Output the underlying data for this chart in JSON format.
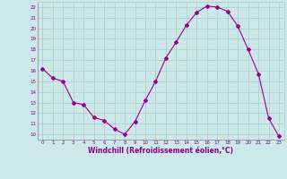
{
  "x": [
    0,
    1,
    2,
    3,
    4,
    5,
    6,
    7,
    8,
    9,
    10,
    11,
    12,
    13,
    14,
    15,
    16,
    17,
    18,
    19,
    20,
    21,
    22,
    23
  ],
  "y": [
    16.2,
    15.3,
    15.0,
    13.0,
    12.8,
    11.6,
    11.3,
    10.5,
    10.0,
    11.2,
    13.2,
    15.0,
    17.2,
    18.7,
    20.3,
    21.5,
    22.1,
    22.0,
    21.6,
    20.2,
    18.0,
    15.7,
    11.5,
    9.8
  ],
  "line_color": "#990099",
  "marker": "D",
  "marker_size": 2,
  "bg_color": "#cce8e8",
  "grid_color": "#aacccc",
  "tick_color": "#880088",
  "xlabel": "Windchill (Refroidissement éolien,°C)",
  "xlabel_color": "#880088",
  "ylim": [
    9.5,
    22.5
  ],
  "xlim": [
    -0.5,
    23.5
  ],
  "yticks": [
    10,
    11,
    12,
    13,
    14,
    15,
    16,
    17,
    18,
    19,
    20,
    21,
    22
  ],
  "xticks": [
    0,
    1,
    2,
    3,
    4,
    5,
    6,
    7,
    8,
    9,
    10,
    11,
    12,
    13,
    14,
    15,
    16,
    17,
    18,
    19,
    20,
    21,
    22,
    23
  ]
}
